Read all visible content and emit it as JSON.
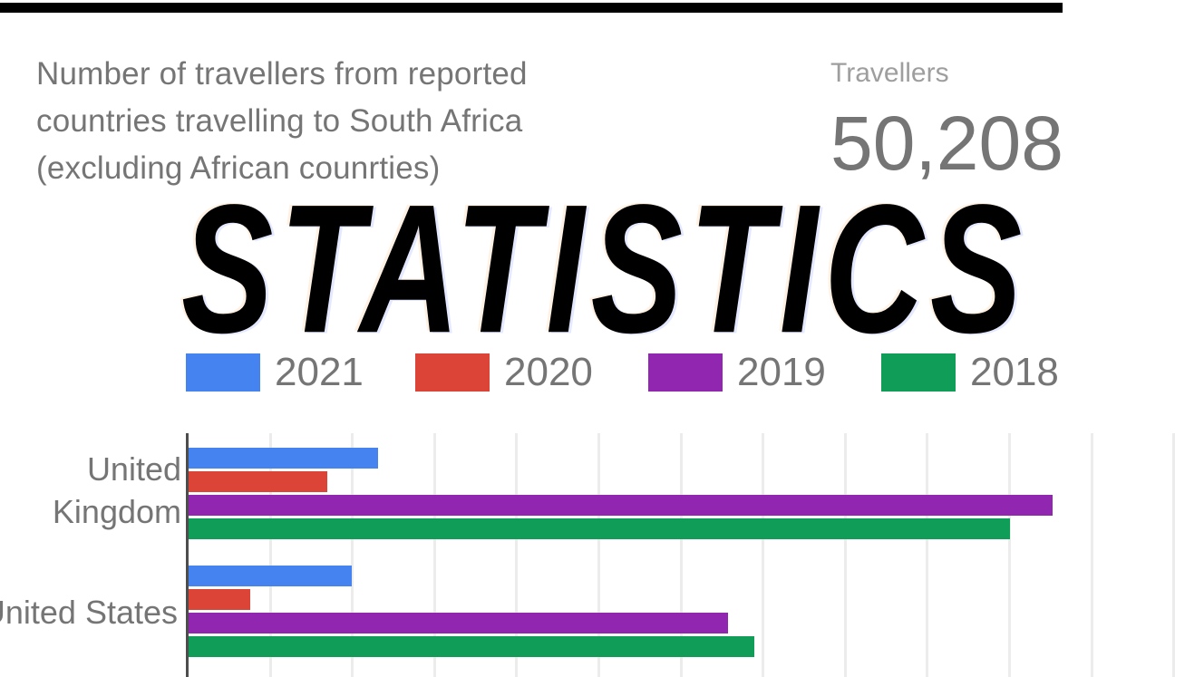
{
  "top_bar": {
    "color": "#000000"
  },
  "header": {
    "title_lines": [
      "Number of travellers from reported",
      "countries travelling to South Africa",
      "(excluding African counrties)"
    ],
    "banner": "STATISTICS",
    "scorecard": {
      "label": "Travellers",
      "value": "50,208"
    }
  },
  "legend": {
    "items": [
      {
        "label": "2021",
        "color": "#4584f0"
      },
      {
        "label": "2020",
        "color": "#db4437"
      },
      {
        "label": "2019",
        "color": "#9126b0"
      },
      {
        "label": "2018",
        "color": "#109d58"
      }
    ]
  },
  "chart_data": {
    "type": "bar",
    "orientation": "horizontal",
    "title": "Number of travellers from reported countries travelling to South Africa (excluding African counrties)",
    "categories": [
      "United Kingdom",
      "United States"
    ],
    "category_label_lines": [
      [
        "United",
        "Kingdom"
      ],
      [
        "United States"
      ]
    ],
    "series": [
      {
        "name": "2021",
        "color": "#4584f0",
        "values_grid_units": [
          2.31,
          1.99
        ]
      },
      {
        "name": "2020",
        "color": "#db4437",
        "values_grid_units": [
          1.69,
          0.75
        ]
      },
      {
        "name": "2019",
        "color": "#9126b0",
        "values_grid_units": [
          10.52,
          6.57
        ]
      },
      {
        "name": "2018",
        "color": "#109d58",
        "values_grid_units": [
          10.0,
          6.89
        ]
      }
    ],
    "axis": {
      "x_tick_labels_visible": false,
      "x_gridline_intervals_visible": 12,
      "units_note": "1 unit = 1 gridline interval; numeric axis labels are cropped below the visible area"
    },
    "legend_position": "top",
    "scorecard_total": "50,208",
    "grid": true
  }
}
